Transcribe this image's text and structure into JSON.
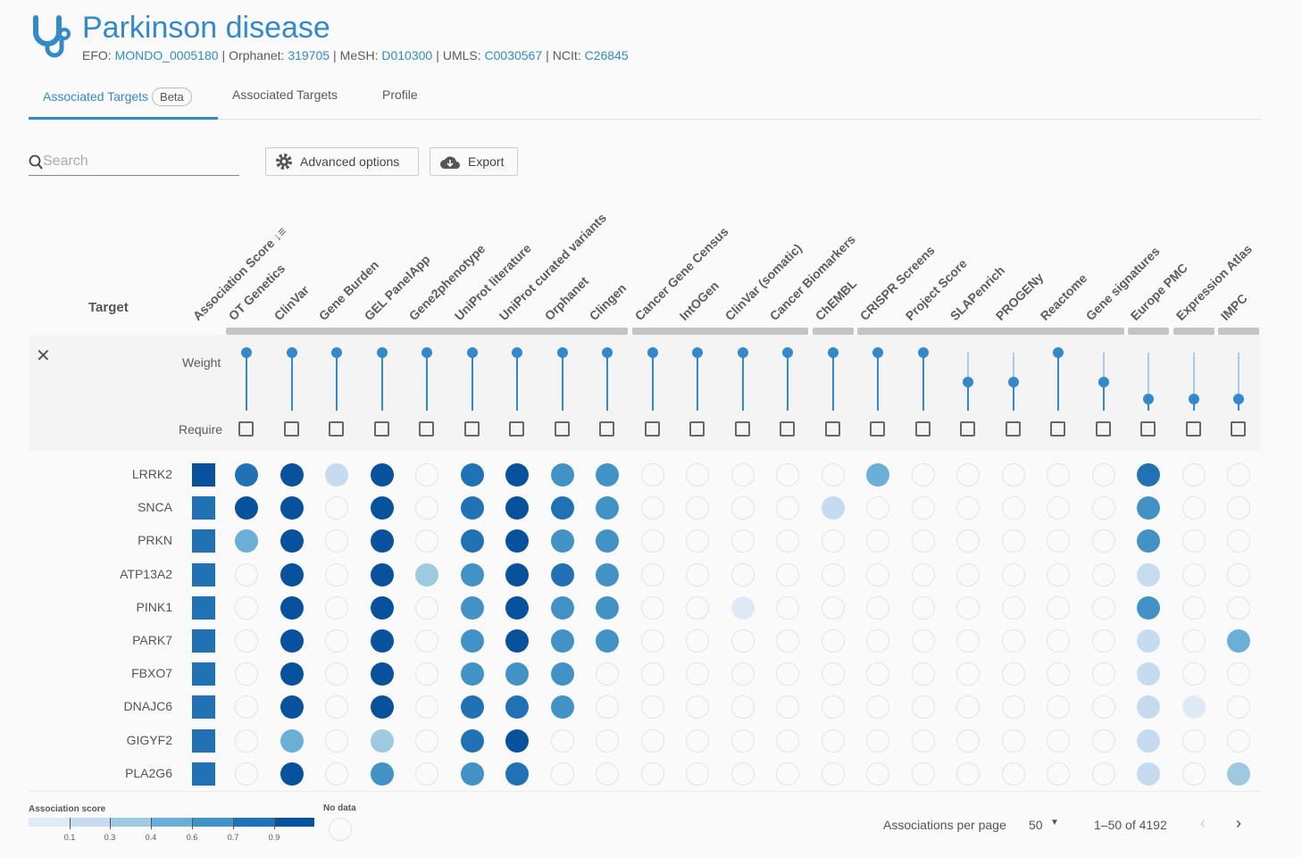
{
  "header": {
    "title": "Parkinson disease",
    "icon": "stethoscope-icon",
    "ids": [
      {
        "label": "EFO:",
        "value": "MONDO_0005180"
      },
      {
        "label": "Orphanet:",
        "value": "319705"
      },
      {
        "label": "MeSH:",
        "value": "D010300"
      },
      {
        "label": "UMLS:",
        "value": "C0030567"
      },
      {
        "label": "NCIt:",
        "value": "C26845"
      }
    ]
  },
  "tabs": [
    {
      "label": "Associated Targets",
      "badge": "Beta",
      "active": true
    },
    {
      "label": "Associated Targets"
    },
    {
      "label": "Profile"
    }
  ],
  "toolbar": {
    "search_placeholder": "Search",
    "advanced_label": "Advanced options",
    "export_label": "Export"
  },
  "table": {
    "target_header": "Target",
    "score_header": "Association Score",
    "weight_label": "Weight",
    "require_label": "Require",
    "columns": [
      {
        "name": "OT Genetics",
        "weight": 1.0
      },
      {
        "name": "ClinVar",
        "weight": 1.0
      },
      {
        "name": "Gene Burden",
        "weight": 1.0
      },
      {
        "name": "GEL PanelApp",
        "weight": 1.0
      },
      {
        "name": "Gene2phenotype",
        "weight": 1.0
      },
      {
        "name": "UniProt literature",
        "weight": 1.0
      },
      {
        "name": "UniProt curated variants",
        "weight": 1.0
      },
      {
        "name": "Orphanet",
        "weight": 1.0
      },
      {
        "name": "Clingen",
        "weight": 1.0
      },
      {
        "name": "Cancer Gene Census",
        "weight": 1.0
      },
      {
        "name": "IntOGen",
        "weight": 1.0
      },
      {
        "name": "ClinVar (somatic)",
        "weight": 1.0
      },
      {
        "name": "Cancer Biomarkers",
        "weight": 1.0
      },
      {
        "name": "ChEMBL",
        "weight": 1.0
      },
      {
        "name": "CRISPR Screens",
        "weight": 1.0
      },
      {
        "name": "Project Score",
        "weight": 1.0
      },
      {
        "name": "SLAPenrich",
        "weight": 0.5
      },
      {
        "name": "PROGENy",
        "weight": 0.5
      },
      {
        "name": "Reactome",
        "weight": 1.0
      },
      {
        "name": "Gene signatures",
        "weight": 0.5
      },
      {
        "name": "Europe PMC",
        "weight": 0.2
      },
      {
        "name": "Expression Atlas",
        "weight": 0.2
      },
      {
        "name": "IMPC",
        "weight": 0.2
      }
    ],
    "rows": [
      {
        "target": "LRRK2",
        "score": 7,
        "cells": [
          6,
          7,
          2,
          7,
          0,
          6,
          7,
          5,
          5,
          0,
          0,
          0,
          0,
          0,
          4,
          0,
          0,
          0,
          0,
          0,
          6,
          0,
          0
        ]
      },
      {
        "target": "SNCA",
        "score": 6,
        "cells": [
          7,
          7,
          0,
          7,
          0,
          6,
          7,
          6,
          5,
          0,
          0,
          0,
          0,
          2,
          0,
          0,
          0,
          0,
          0,
          0,
          5,
          0,
          0
        ]
      },
      {
        "target": "PRKN",
        "score": 6,
        "cells": [
          4,
          7,
          0,
          7,
          0,
          6,
          7,
          5,
          5,
          0,
          0,
          0,
          0,
          0,
          0,
          0,
          0,
          0,
          0,
          0,
          5,
          0,
          0
        ]
      },
      {
        "target": "ATP13A2",
        "score": 6,
        "cells": [
          0,
          7,
          0,
          7,
          3,
          5,
          7,
          6,
          5,
          0,
          0,
          0,
          0,
          0,
          0,
          0,
          0,
          0,
          0,
          0,
          2,
          0,
          0
        ]
      },
      {
        "target": "PINK1",
        "score": 6,
        "cells": [
          0,
          7,
          0,
          7,
          0,
          5,
          7,
          5,
          5,
          0,
          0,
          1,
          0,
          0,
          0,
          0,
          0,
          0,
          0,
          0,
          5,
          0,
          0
        ]
      },
      {
        "target": "PARK7",
        "score": 6,
        "cells": [
          0,
          7,
          0,
          7,
          0,
          5,
          7,
          5,
          5,
          0,
          0,
          0,
          0,
          0,
          0,
          0,
          0,
          0,
          0,
          0,
          2,
          0,
          4
        ]
      },
      {
        "target": "FBXO7",
        "score": 6,
        "cells": [
          0,
          7,
          0,
          7,
          0,
          5,
          5,
          5,
          0,
          0,
          0,
          0,
          0,
          0,
          0,
          0,
          0,
          0,
          0,
          0,
          2,
          0,
          0
        ]
      },
      {
        "target": "DNAJC6",
        "score": 6,
        "cells": [
          0,
          7,
          0,
          7,
          0,
          6,
          6,
          5,
          0,
          0,
          0,
          0,
          0,
          0,
          0,
          0,
          0,
          0,
          0,
          0,
          2,
          1,
          0
        ]
      },
      {
        "target": "GIGYF2",
        "score": 6,
        "cells": [
          0,
          4,
          0,
          3,
          0,
          6,
          7,
          0,
          0,
          0,
          0,
          0,
          0,
          0,
          0,
          0,
          0,
          0,
          0,
          0,
          2,
          0,
          0
        ]
      },
      {
        "target": "PLA2G6",
        "score": 6,
        "cells": [
          0,
          7,
          0,
          5,
          0,
          5,
          6,
          0,
          0,
          0,
          0,
          0,
          0,
          0,
          0,
          0,
          0,
          0,
          0,
          0,
          2,
          0,
          3
        ]
      }
    ]
  },
  "legend": {
    "title": "Association score",
    "colors": [
      "#deebf7",
      "#c6dbef",
      "#9ecae1",
      "#6baed6",
      "#4292c6",
      "#2171b5",
      "#08519c"
    ],
    "ticks": [
      "0.1",
      "0.3",
      "0.4",
      "0.6",
      "0.7",
      "0.9"
    ],
    "no_data_label": "No data"
  },
  "pagination": {
    "per_page_label": "Associations per page",
    "per_page_value": "50",
    "range": "1–50 of 4192"
  },
  "colors": {
    "accent": "#3489ca"
  }
}
